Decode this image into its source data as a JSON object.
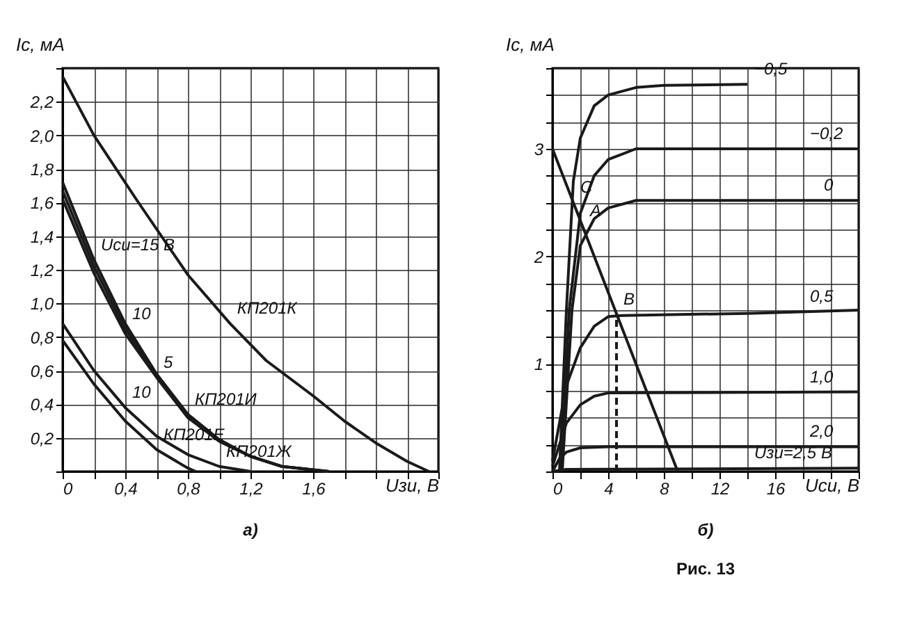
{
  "chart_data": [
    {
      "type": "line",
      "xlabel": "Uзи, В",
      "ylabel": "Iс, мА",
      "xlim": [
        0,
        2.4
      ],
      "ylim": [
        0,
        2.4
      ],
      "grid": true,
      "xticks": [
        {
          "value": 0,
          "label": "0"
        },
        {
          "value": 0.2,
          "label": null
        },
        {
          "value": 0.4,
          "label": "0,4"
        },
        {
          "value": 0.6,
          "label": null
        },
        {
          "value": 0.8,
          "label": "0,8"
        },
        {
          "value": 1.0,
          "label": null
        },
        {
          "value": 1.2,
          "label": "1,2"
        },
        {
          "value": 1.4,
          "label": null
        },
        {
          "value": 1.6,
          "label": "1,6"
        },
        {
          "value": 1.8,
          "label": null
        },
        {
          "value": 2.0,
          "label": null
        },
        {
          "value": 2.2,
          "label": null
        },
        {
          "value": 2.4,
          "label": null
        }
      ],
      "yticks": [
        {
          "value": 0,
          "label": null
        },
        {
          "value": 0.2,
          "label": "0,2"
        },
        {
          "value": 0.4,
          "label": "0,4"
        },
        {
          "value": 0.6,
          "label": "0,6"
        },
        {
          "value": 0.8,
          "label": "0,8"
        },
        {
          "value": 1.0,
          "label": "1,0"
        },
        {
          "value": 1.2,
          "label": "1,2"
        },
        {
          "value": 1.4,
          "label": "1,4"
        },
        {
          "value": 1.6,
          "label": "1,6"
        },
        {
          "value": 1.8,
          "label": "1,8"
        },
        {
          "value": 2.0,
          "label": "2,0"
        },
        {
          "value": 2.2,
          "label": "2,2"
        },
        {
          "value": 2.4,
          "label": null
        }
      ],
      "series": [
        {
          "color": "#1a1a1a",
          "x": [
            0,
            0.2,
            0.47,
            0.8,
            1.07,
            1.3,
            1.6,
            1.8,
            2.0,
            2.2,
            2.34
          ],
          "values": [
            2.35,
            2.0,
            1.62,
            1.17,
            0.88,
            0.66,
            0.45,
            0.3,
            0.17,
            0.06,
            0
          ]
        },
        {
          "color": "#1a1a1a",
          "x": [
            0,
            0.2,
            0.4,
            0.6,
            0.8,
            1.0,
            1.2,
            1.4,
            1.7
          ],
          "values": [
            1.72,
            1.26,
            0.88,
            0.58,
            0.34,
            0.19,
            0.09,
            0.03,
            0
          ]
        },
        {
          "color": "#1a1a1a",
          "x": [
            0,
            0.2,
            0.4,
            0.6,
            0.8,
            1.0,
            1.2,
            1.4,
            1.7
          ],
          "values": [
            1.67,
            1.22,
            0.85,
            0.57,
            0.33,
            0.18,
            0.09,
            0.03,
            0
          ]
        },
        {
          "color": "#1a1a1a",
          "x": [
            0,
            0.2,
            0.4,
            0.6,
            0.8,
            1.0,
            1.2,
            1.4,
            1.7
          ],
          "values": [
            1.62,
            1.18,
            0.82,
            0.56,
            0.32,
            0.18,
            0.09,
            0.03,
            0
          ]
        },
        {
          "color": "#1a1a1a",
          "x": [
            0,
            0.2,
            0.4,
            0.6,
            0.8,
            1.0,
            1.2
          ],
          "values": [
            0.88,
            0.6,
            0.38,
            0.21,
            0.1,
            0.03,
            0
          ]
        },
        {
          "color": "#1a1a1a",
          "x": [
            0,
            0.2,
            0.4,
            0.6,
            0.8,
            0.85
          ],
          "values": [
            0.78,
            0.52,
            0.3,
            0.13,
            0.02,
            0
          ]
        }
      ],
      "annotations": [
        {
          "text": "Uси=15 В",
          "x": 0.2,
          "y": 1.26
        },
        {
          "text": "10",
          "x": 0.4,
          "y": 0.85
        },
        {
          "text": "5",
          "x": 0.6,
          "y": 0.56
        },
        {
          "text": "10",
          "x": 0.4,
          "y": 0.38
        },
        {
          "text": "КП201К",
          "x": 1.07,
          "y": 0.88
        },
        {
          "text": "КП201И",
          "x": 0.8,
          "y": 0.34
        },
        {
          "text": "КП201Ж",
          "x": 1.0,
          "y": 0.03
        },
        {
          "text": "КП201Е",
          "x": 0.6,
          "y": 0.13
        },
        "а)"
      ]
    },
    {
      "type": "line",
      "xlabel": "Uси, В",
      "ylabel": "Iс, мА",
      "xlim": [
        0,
        22
      ],
      "ylim": [
        0,
        3.75
      ],
      "grid": true,
      "xticks": [
        0,
        {
          "value": 2,
          "label": null
        },
        4,
        {
          "value": 6,
          "label": null
        },
        8,
        {
          "value": 10,
          "label": null
        },
        12,
        {
          "value": 14,
          "label": null
        },
        16,
        {
          "value": 18,
          "label": null
        },
        {
          "value": 20,
          "label": null
        },
        {
          "value": 22,
          "label": null
        }
      ],
      "yticks": [
        {
          "value": 0,
          "label": null
        },
        {
          "value": 0.25,
          "label": null
        },
        {
          "value": 0.5,
          "label": null
        },
        {
          "value": 0.75,
          "label": null
        },
        1,
        {
          "value": 1.25,
          "label": null
        },
        {
          "value": 1.5,
          "label": null
        },
        {
          "value": 1.75,
          "label": null
        },
        2,
        {
          "value": 2.25,
          "label": null
        },
        {
          "value": 2.5,
          "label": null
        },
        {
          "value": 2.75,
          "label": null
        },
        3,
        {
          "value": 3.25,
          "label": null
        },
        {
          "value": 3.5,
          "label": null
        },
        {
          "value": 3.75,
          "label": null
        }
      ],
      "series": [
        {
          "color": "#1a1a1a",
          "x": [
            0.5,
            1,
            1.5,
            2,
            3,
            4,
            6,
            8,
            14
          ],
          "values": [
            0,
            1.5,
            2.7,
            3.1,
            3.4,
            3.5,
            3.57,
            3.59,
            3.6
          ]
        },
        {
          "color": "#1a1a1a",
          "x": [
            0.6,
            1.2,
            2,
            3,
            4,
            6,
            22
          ],
          "values": [
            0,
            1.5,
            2.4,
            2.75,
            2.9,
            3.0,
            3.0
          ]
        },
        {
          "color": "#1a1a1a",
          "x": [
            0.7,
            1.4,
            2,
            3,
            4,
            6,
            22
          ],
          "values": [
            0,
            1.5,
            2.1,
            2.35,
            2.45,
            2.52,
            2.52
          ]
        },
        {
          "color": "#1a1a1a",
          "x": [
            0,
            1,
            2,
            3,
            4,
            5,
            14,
            22
          ],
          "values": [
            0.1,
            0.8,
            1.15,
            1.35,
            1.44,
            1.45,
            1.47,
            1.5
          ]
        },
        {
          "color": "#1a1a1a",
          "x": [
            0,
            1,
            2,
            3,
            4,
            22
          ],
          "values": [
            0.05,
            0.45,
            0.62,
            0.7,
            0.73,
            0.74
          ]
        },
        {
          "color": "#1a1a1a",
          "x": [
            0,
            0.5,
            1,
            2,
            4,
            22
          ],
          "values": [
            0,
            0.12,
            0.18,
            0.22,
            0.23,
            0.23
          ]
        },
        {
          "color": "#1a1a1a",
          "x": [
            0,
            1,
            22
          ],
          "values": [
            0,
            0.02,
            0.03
          ]
        },
        {
          "color": "#1a1a1a",
          "x": [
            0,
            9
          ],
          "values": [
            3.0,
            0
          ]
        },
        {
          "color": "#1a1a1a",
          "line_style": "dashed",
          "x": [
            4.6,
            4.6
          ],
          "values": [
            0,
            1.46
          ]
        }
      ],
      "annotations": [
        {
          "text": "−0,5",
          "x": 14,
          "y": 3.6
        },
        {
          "text": "−0,2",
          "x": 18,
          "y": 3.0
        },
        {
          "text": "0",
          "x": 19,
          "y": 2.52
        },
        {
          "text": "0,5",
          "x": 18,
          "y": 1.49
        },
        {
          "text": "1,0",
          "x": 18,
          "y": 0.74
        },
        {
          "text": "2,0",
          "x": 18,
          "y": 0.23
        },
        {
          "text": "Uзи=2,5 В",
          "x": 14,
          "y": 0.03
        },
        {
          "text": "C",
          "x": 1.5,
          "y": 2.5
        },
        {
          "text": "A",
          "x": 2.2,
          "y": 2.28
        },
        {
          "text": "B",
          "x": 4.6,
          "y": 1.46
        },
        "б)",
        "Рис. 13"
      ]
    }
  ]
}
